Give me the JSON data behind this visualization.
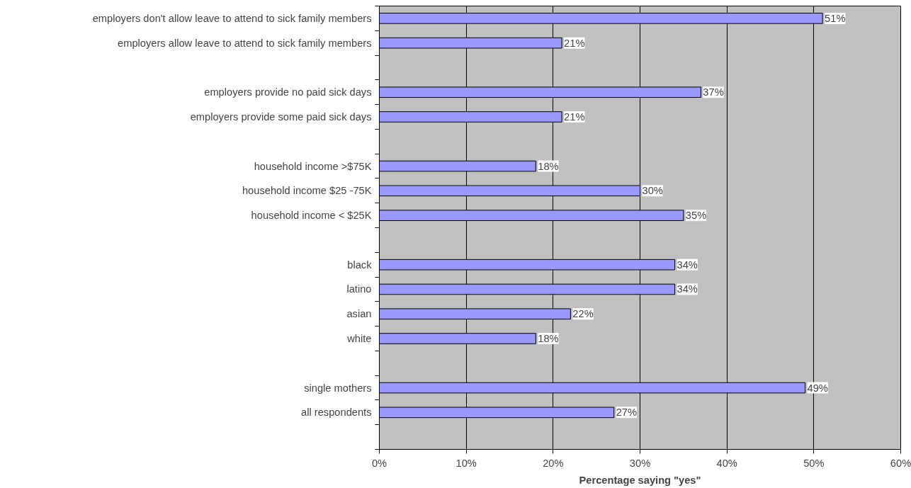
{
  "chart_data": {
    "type": "bar",
    "orientation": "horizontal",
    "xlabel": "Percentage saying \"yes\"",
    "categories": [
      "employers don't allow leave to attend to sick family members",
      "employers allow leave to attend to sick family members",
      null,
      "employers provide no paid sick days",
      "employers provide some paid sick days",
      null,
      "household income >$75K",
      "household income $25 -75K",
      "household income < $25K",
      null,
      "black",
      "latino",
      "asian",
      "white",
      null,
      "single mothers",
      "all respondents",
      null
    ],
    "values": [
      51,
      21,
      null,
      37,
      21,
      null,
      18,
      30,
      35,
      null,
      34,
      34,
      22,
      18,
      null,
      49,
      27,
      null
    ],
    "value_labels": [
      "51%",
      "21%",
      null,
      "37%",
      "21%",
      null,
      "18%",
      "30%",
      "35%",
      null,
      "34%",
      "34%",
      "22%",
      "18%",
      null,
      "49%",
      "27%",
      null
    ],
    "color": "#9999ff",
    "xlim": [
      0,
      60
    ],
    "xticks": [
      {
        "value": 0,
        "label": "0%"
      },
      {
        "value": 10,
        "label": "10%"
      },
      {
        "value": 20,
        "label": "20%"
      },
      {
        "value": 30,
        "label": "30%"
      },
      {
        "value": 40,
        "label": "40%"
      },
      {
        "value": 50,
        "label": "50%"
      },
      {
        "value": 60,
        "label": "60%"
      }
    ],
    "grid": "x"
  }
}
